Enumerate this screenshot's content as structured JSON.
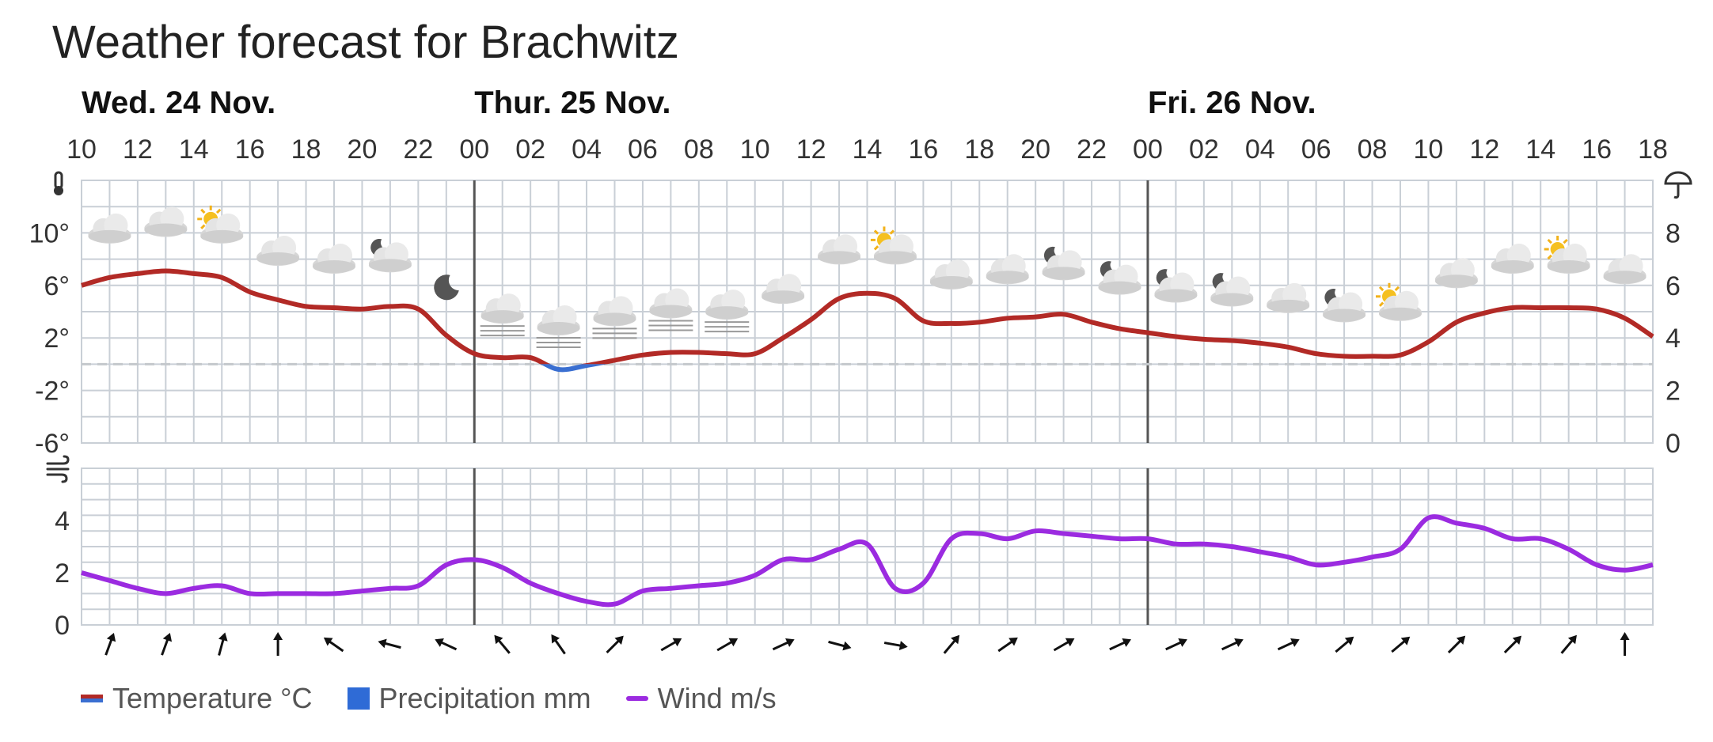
{
  "title": "Weather forecast for Brachwitz",
  "colors": {
    "temperature": "#b22a26",
    "temperature_below_zero": "#3a6fd1",
    "precipitation": "#2f6bd6",
    "wind": "#9b2be0",
    "grid": "#c9cfd6",
    "day_divider": "#555555"
  },
  "chart_data": [
    {
      "type": "line",
      "panel": "temperature-precipitation",
      "x_hour_ticks": [
        "10",
        "12",
        "14",
        "16",
        "18",
        "20",
        "22",
        "00",
        "02",
        "04",
        "06",
        "08",
        "10",
        "12",
        "14",
        "16",
        "18",
        "20",
        "22",
        "00",
        "02",
        "04",
        "06",
        "08",
        "10",
        "12",
        "14",
        "16",
        "18"
      ],
      "day_labels": [
        {
          "label": "Wed. 24 Nov.",
          "start_hour": 0
        },
        {
          "label": "Thur. 25 Nov.",
          "start_hour": 14
        },
        {
          "label": "Fri. 26 Nov.",
          "start_hour": 38
        }
      ],
      "y_left_ticks": [
        "10°",
        "6°",
        "2°",
        "-2°",
        "-6°"
      ],
      "y_left_values": [
        10,
        6,
        2,
        -2,
        -6
      ],
      "y_left_range": [
        -6,
        14
      ],
      "y_right_ticks": [
        "8",
        "6",
        "4",
        "2",
        "0"
      ],
      "y_right_values": [
        8,
        6,
        4,
        2,
        0
      ],
      "y_right_range": [
        0,
        10
      ],
      "zero_line": true,
      "left_axis_icon": "thermometer-icon",
      "right_axis_icon": "umbrella-icon",
      "series": [
        {
          "name": "Temperature °C",
          "hours": [
            0,
            1,
            2,
            3,
            4,
            5,
            6,
            7,
            8,
            9,
            10,
            11,
            12,
            13,
            14,
            15,
            16,
            17,
            18,
            19,
            20,
            21,
            22,
            23,
            24,
            25,
            26,
            27,
            28,
            29,
            30,
            31,
            32,
            33,
            34,
            35,
            36,
            37,
            38,
            39,
            40,
            41,
            42,
            43,
            44,
            45,
            46,
            47,
            48,
            49,
            50,
            51,
            52,
            53,
            54,
            55,
            56
          ],
          "values": [
            6.0,
            6.6,
            6.9,
            7.1,
            6.9,
            6.6,
            5.5,
            4.9,
            4.4,
            4.3,
            4.2,
            4.4,
            4.2,
            2.2,
            0.8,
            0.5,
            0.5,
            -0.4,
            -0.1,
            0.3,
            0.7,
            0.9,
            0.9,
            0.8,
            0.8,
            2.0,
            3.4,
            5.0,
            5.4,
            5.0,
            3.3,
            3.1,
            3.2,
            3.5,
            3.6,
            3.8,
            3.2,
            2.7,
            2.4,
            2.1,
            1.9,
            1.8,
            1.6,
            1.3,
            0.8,
            0.6,
            0.6,
            0.7,
            1.7,
            3.2,
            3.9,
            4.3,
            4.3,
            4.3,
            4.2,
            3.5,
            2.1
          ]
        },
        {
          "name": "Precipitation mm",
          "values": []
        }
      ],
      "weather_icons": [
        {
          "hour": 1,
          "icon": "cloud"
        },
        {
          "hour": 3,
          "icon": "cloud"
        },
        {
          "hour": 5,
          "icon": "sun-cloud"
        },
        {
          "hour": 7,
          "icon": "cloud"
        },
        {
          "hour": 9,
          "icon": "cloud"
        },
        {
          "hour": 11,
          "icon": "moon-cloud"
        },
        {
          "hour": 13,
          "icon": "moon"
        },
        {
          "hour": 15,
          "icon": "fog-cloud"
        },
        {
          "hour": 17,
          "icon": "fog-cloud"
        },
        {
          "hour": 19,
          "icon": "fog-cloud"
        },
        {
          "hour": 21,
          "icon": "fog-cloud"
        },
        {
          "hour": 23,
          "icon": "fog-cloud"
        },
        {
          "hour": 25,
          "icon": "cloud"
        },
        {
          "hour": 27,
          "icon": "cloud"
        },
        {
          "hour": 29,
          "icon": "sun-cloud"
        },
        {
          "hour": 31,
          "icon": "cloud"
        },
        {
          "hour": 33,
          "icon": "cloud"
        },
        {
          "hour": 35,
          "icon": "moon-cloud"
        },
        {
          "hour": 37,
          "icon": "moon-cloud"
        },
        {
          "hour": 39,
          "icon": "moon-cloud"
        },
        {
          "hour": 41,
          "icon": "moon-cloud"
        },
        {
          "hour": 43,
          "icon": "cloud"
        },
        {
          "hour": 45,
          "icon": "moon-cloud"
        },
        {
          "hour": 47,
          "icon": "sun-cloud"
        },
        {
          "hour": 49,
          "icon": "cloud"
        },
        {
          "hour": 51,
          "icon": "cloud"
        },
        {
          "hour": 53,
          "icon": "sun-cloud"
        },
        {
          "hour": 55,
          "icon": "cloud"
        }
      ]
    },
    {
      "type": "line",
      "panel": "wind",
      "left_axis_icon": "wind-icon",
      "y_left_ticks": [
        "4",
        "2",
        "0"
      ],
      "y_left_values": [
        4,
        2,
        0
      ],
      "y_left_range": [
        0,
        6
      ],
      "series": [
        {
          "name": "Wind m/s",
          "hours": [
            0,
            1,
            2,
            3,
            4,
            5,
            6,
            7,
            8,
            9,
            10,
            11,
            12,
            13,
            14,
            15,
            16,
            17,
            18,
            19,
            20,
            21,
            22,
            23,
            24,
            25,
            26,
            27,
            28,
            29,
            30,
            31,
            32,
            33,
            34,
            35,
            36,
            37,
            38,
            39,
            40,
            41,
            42,
            43,
            44,
            45,
            46,
            47,
            48,
            49,
            50,
            51,
            52,
            53,
            54,
            55,
            56
          ],
          "values": [
            2.0,
            1.7,
            1.4,
            1.2,
            1.4,
            1.5,
            1.2,
            1.2,
            1.2,
            1.2,
            1.3,
            1.4,
            1.5,
            2.3,
            2.5,
            2.2,
            1.6,
            1.2,
            0.9,
            0.8,
            1.3,
            1.4,
            1.5,
            1.6,
            1.9,
            2.5,
            2.5,
            2.9,
            3.1,
            1.4,
            1.6,
            3.3,
            3.5,
            3.3,
            3.6,
            3.5,
            3.4,
            3.3,
            3.3,
            3.1,
            3.1,
            3.0,
            2.8,
            2.6,
            2.3,
            2.4,
            2.6,
            2.9,
            4.1,
            3.9,
            3.7,
            3.3,
            3.3,
            2.9,
            2.3,
            2.1,
            2.3
          ]
        }
      ],
      "wind_direction_arrows_deg": [
        20,
        20,
        15,
        0,
        -55,
        -75,
        -65,
        -40,
        -35,
        45,
        60,
        60,
        65,
        105,
        100,
        40,
        55,
        60,
        65,
        65,
        65,
        65,
        50,
        50,
        45,
        45,
        40,
        0
      ]
    }
  ],
  "legend": [
    {
      "label": "Temperature °C",
      "swatch": "temperature"
    },
    {
      "label": "Precipitation mm",
      "swatch": "precipitation"
    },
    {
      "label": "Wind m/s",
      "swatch": "wind"
    }
  ]
}
